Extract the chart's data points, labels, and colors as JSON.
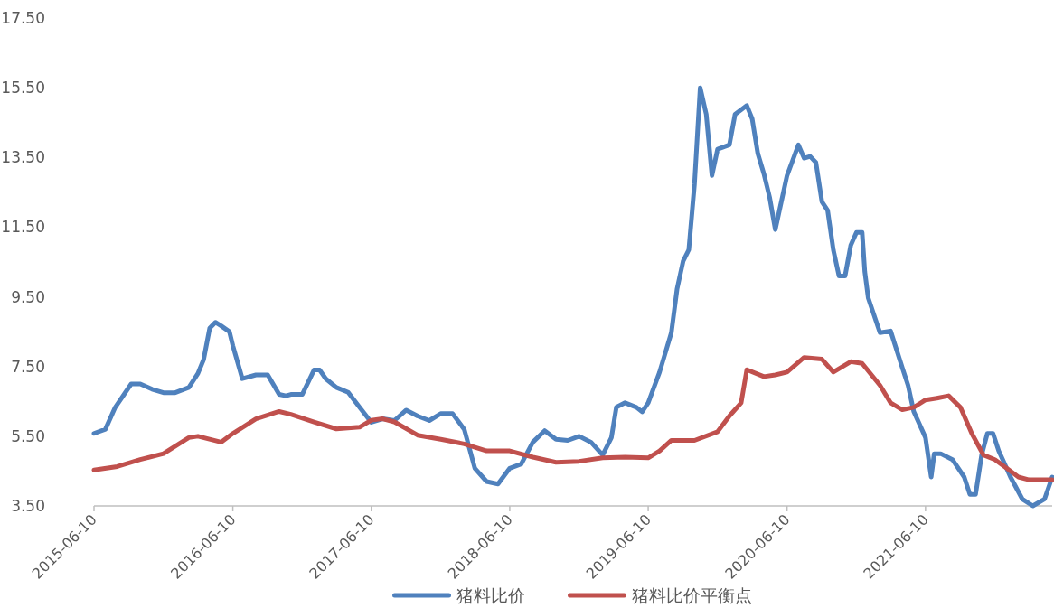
{
  "chart_data": {
    "type": "line",
    "xlim": [
      "2015-06-10",
      "2022-05-10"
    ],
    "xticks": [
      "2015-06-10",
      "2016-06-10",
      "2017-06-10",
      "2018-06-10",
      "2019-06-10",
      "2020-06-10",
      "2021-06-10"
    ],
    "ylim": [
      3.5,
      17.5
    ],
    "yticks": [
      {
        "value": 3.5,
        "label": "3.50"
      },
      {
        "value": 5.5,
        "label": "5.50"
      },
      {
        "value": 7.5,
        "label": "7.50"
      },
      {
        "value": 9.5,
        "label": "9.50"
      },
      {
        "value": 11.5,
        "label": "11.50"
      },
      {
        "value": 13.5,
        "label": "13.50"
      },
      {
        "value": 15.5,
        "label": "15.50"
      },
      {
        "value": 17.5,
        "label": "17.50"
      }
    ],
    "legend": "bottom",
    "grid": false,
    "series": [
      {
        "name": "猪料比价",
        "color": "#4f81bd",
        "x": [
          "2015-06-10",
          "2015-07-10",
          "2015-08-05",
          "2015-09-16",
          "2015-10-10",
          "2015-11-10",
          "2015-12-10",
          "2016-01-10",
          "2016-02-15",
          "2016-03-10",
          "2016-03-25",
          "2016-04-10",
          "2016-04-25",
          "2016-05-10",
          "2016-06-01",
          "2016-06-10",
          "2016-07-05",
          "2016-08-10",
          "2016-09-10",
          "2016-10-10",
          "2016-10-28",
          "2016-11-10",
          "2016-12-10",
          "2017-01-10",
          "2017-01-25",
          "2017-02-10",
          "2017-03-10",
          "2017-04-10",
          "2017-05-10",
          "2017-06-10",
          "2017-07-10",
          "2017-08-10",
          "2017-09-10",
          "2017-10-10",
          "2017-11-10",
          "2017-12-10",
          "2018-01-10",
          "2018-02-10",
          "2018-03-10",
          "2018-04-10",
          "2018-05-10",
          "2018-06-10",
          "2018-07-10",
          "2018-08-10",
          "2018-09-10",
          "2018-10-10",
          "2018-11-10",
          "2018-12-10",
          "2019-01-10",
          "2019-02-10",
          "2019-03-05",
          "2019-03-18",
          "2019-04-10",
          "2019-05-10",
          "2019-05-25",
          "2019-06-10",
          "2019-07-10",
          "2019-08-10",
          "2019-08-25",
          "2019-09-10",
          "2019-09-25",
          "2019-10-10",
          "2019-10-25",
          "2019-11-10",
          "2019-11-25",
          "2019-12-10",
          "2020-01-10",
          "2020-01-25",
          "2020-02-10",
          "2020-02-25",
          "2020-03-10",
          "2020-03-25",
          "2020-04-10",
          "2020-04-25",
          "2020-05-10",
          "2020-06-10",
          "2020-07-10",
          "2020-07-25",
          "2020-08-10",
          "2020-08-25",
          "2020-09-10",
          "2020-09-25",
          "2020-10-10",
          "2020-10-25",
          "2020-11-10",
          "2020-11-25",
          "2020-12-10",
          "2020-12-25",
          "2021-01-01",
          "2021-01-10",
          "2021-02-10",
          "2021-03-10",
          "2021-04-10",
          "2021-04-25",
          "2021-05-10",
          "2021-06-10",
          "2021-06-25",
          "2021-07-03",
          "2021-07-20",
          "2021-08-20",
          "2021-09-20",
          "2021-10-05",
          "2021-10-20",
          "2021-11-05",
          "2021-11-20",
          "2021-12-05",
          "2021-12-20",
          "2022-01-05",
          "2022-01-20",
          "2022-02-20",
          "2022-03-20",
          "2022-04-20",
          "2022-05-10"
        ],
        "values": [
          5.58,
          5.7,
          6.33,
          7.0,
          7.0,
          6.85,
          6.75,
          6.75,
          6.9,
          7.3,
          7.7,
          8.6,
          8.77,
          8.67,
          8.5,
          8.1,
          7.15,
          7.26,
          7.26,
          6.7,
          6.66,
          6.7,
          6.7,
          7.4,
          7.4,
          7.15,
          6.9,
          6.76,
          6.33,
          5.9,
          6.0,
          5.95,
          6.25,
          6.08,
          5.95,
          6.15,
          6.15,
          5.7,
          4.58,
          4.2,
          4.13,
          4.58,
          4.7,
          5.33,
          5.66,
          5.41,
          5.38,
          5.5,
          5.33,
          4.96,
          5.46,
          6.33,
          6.46,
          6.33,
          6.2,
          6.46,
          7.34,
          8.47,
          9.72,
          10.52,
          10.85,
          12.73,
          15.5,
          14.74,
          12.98,
          13.74,
          13.86,
          14.74,
          14.87,
          14.99,
          14.61,
          13.61,
          13.03,
          12.36,
          11.43,
          12.98,
          13.86,
          13.48,
          13.53,
          13.36,
          12.23,
          11.98,
          10.85,
          10.1,
          10.1,
          10.98,
          11.35,
          11.35,
          10.22,
          9.47,
          8.47,
          8.52,
          7.46,
          6.96,
          6.21,
          5.46,
          4.33,
          5.0,
          5.0,
          4.83,
          4.33,
          3.83,
          3.83,
          4.96,
          5.58,
          5.58,
          5.08,
          4.7,
          4.33,
          3.7,
          3.5,
          3.7,
          4.33
        ]
      },
      {
        "name": "猪料比价平衡点",
        "color": "#c0504d",
        "x": [
          "2015-06-10",
          "2015-08-10",
          "2015-10-10",
          "2015-12-10",
          "2016-02-15",
          "2016-03-10",
          "2016-05-10",
          "2016-06-10",
          "2016-08-10",
          "2016-10-10",
          "2016-11-10",
          "2017-01-10",
          "2017-03-10",
          "2017-05-10",
          "2017-06-10",
          "2017-07-10",
          "2017-08-10",
          "2017-10-10",
          "2017-12-10",
          "2018-02-10",
          "2018-04-10",
          "2018-06-10",
          "2018-08-10",
          "2018-10-10",
          "2018-12-10",
          "2019-02-10",
          "2019-04-10",
          "2019-06-10",
          "2019-07-10",
          "2019-08-10",
          "2019-10-10",
          "2019-12-10",
          "2020-01-10",
          "2020-02-10",
          "2020-02-25",
          "2020-04-10",
          "2020-05-10",
          "2020-06-10",
          "2020-07-25",
          "2020-09-10",
          "2020-10-10",
          "2020-11-25",
          "2020-12-25",
          "2021-02-10",
          "2021-03-10",
          "2021-04-10",
          "2021-05-10",
          "2021-06-10",
          "2021-07-10",
          "2021-08-10",
          "2021-09-10",
          "2021-10-10",
          "2021-11-10",
          "2021-12-10",
          "2022-01-10",
          "2022-02-10",
          "2022-03-10",
          "2022-05-10"
        ],
        "values": [
          4.53,
          4.63,
          4.83,
          5.0,
          5.46,
          5.5,
          5.33,
          5.58,
          6.0,
          6.21,
          6.13,
          5.91,
          5.71,
          5.76,
          5.96,
          6.0,
          5.91,
          5.53,
          5.41,
          5.28,
          5.08,
          5.08,
          4.9,
          4.75,
          4.78,
          4.88,
          4.9,
          4.88,
          5.08,
          5.38,
          5.38,
          5.63,
          6.08,
          6.46,
          7.41,
          7.21,
          7.26,
          7.34,
          7.76,
          7.71,
          7.34,
          7.64,
          7.59,
          6.96,
          6.46,
          6.26,
          6.33,
          6.54,
          6.59,
          6.66,
          6.33,
          5.58,
          4.96,
          4.83,
          4.58,
          4.33,
          4.25,
          4.25
        ]
      }
    ]
  }
}
